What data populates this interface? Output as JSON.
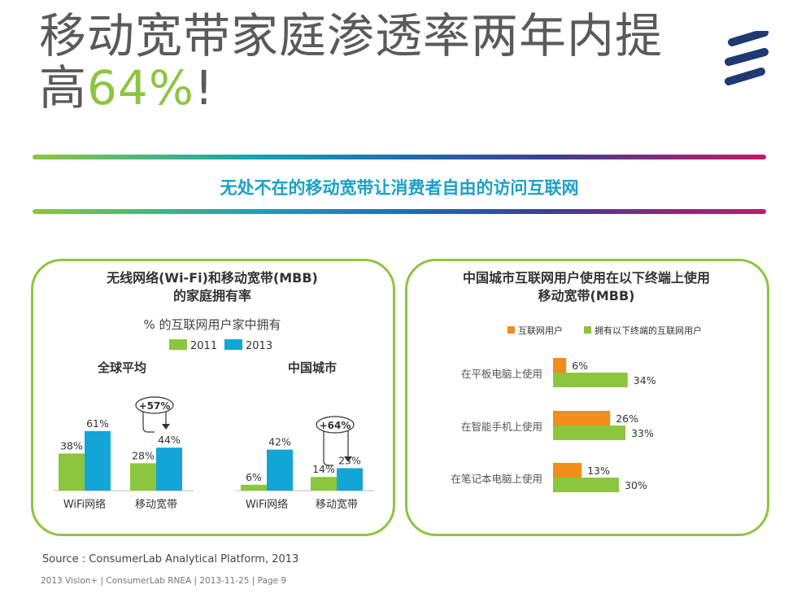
{
  "header": {
    "title_line1": "移动宽带家庭渗透率两年内提",
    "title_line2_prefix": "高",
    "title_line2_highlight": "64%",
    "title_line2_suffix": "!"
  },
  "logo": {
    "icon": "ericsson-logo-icon",
    "color": "#1f3a73"
  },
  "banner": {
    "text": "无处不在的移动宽带让消费者自由的访问互联网"
  },
  "colors": {
    "green": "#8cc63f",
    "blue": "#12a6d6",
    "orange": "#f28c1a",
    "teal_text": "#1aa1c9"
  },
  "left_panel": {
    "title_line1": "无线网络(Wi-Fi)和移动宽带(MBB)",
    "title_line2": "的家庭拥有率",
    "subtitle": "% 的互联网用户家中拥有"
  },
  "right_panel": {
    "title_line1": "中国城市互联网用户使用在以下终端上使用",
    "title_line2": "移动宽带(MBB)"
  },
  "chart_data": [
    {
      "type": "bar",
      "title": "全球平均",
      "categories": [
        "WiFi网络",
        "移动宽带"
      ],
      "series": [
        {
          "name": "2011",
          "values": [
            38,
            28
          ]
        },
        {
          "name": "2013",
          "values": [
            61,
            44
          ]
        }
      ],
      "annotation": "+57%"
    },
    {
      "type": "bar",
      "title": "中国城市",
      "categories": [
        "WiFi网络",
        "移动宽带"
      ],
      "series": [
        {
          "name": "2011",
          "values": [
            6,
            14
          ]
        },
        {
          "name": "2013",
          "values": [
            42,
            23
          ]
        }
      ],
      "annotation": "+64%"
    },
    {
      "type": "bar",
      "orientation": "horizontal",
      "categories": [
        "在平板电脑上使用",
        "在智能手机上使用",
        "在笔记本电脑上使用"
      ],
      "series": [
        {
          "name": "互联网用户",
          "values": [
            6,
            26,
            13
          ]
        },
        {
          "name": "拥有以下终端的互联网用户",
          "values": [
            34,
            33,
            30
          ]
        }
      ]
    }
  ],
  "source": "Source : ConsumerLab Analytical Platform, 2013",
  "footer": "2013 Vision+  |  ConsumerLab RNEA  |  2013-11-25  |  Page 9"
}
